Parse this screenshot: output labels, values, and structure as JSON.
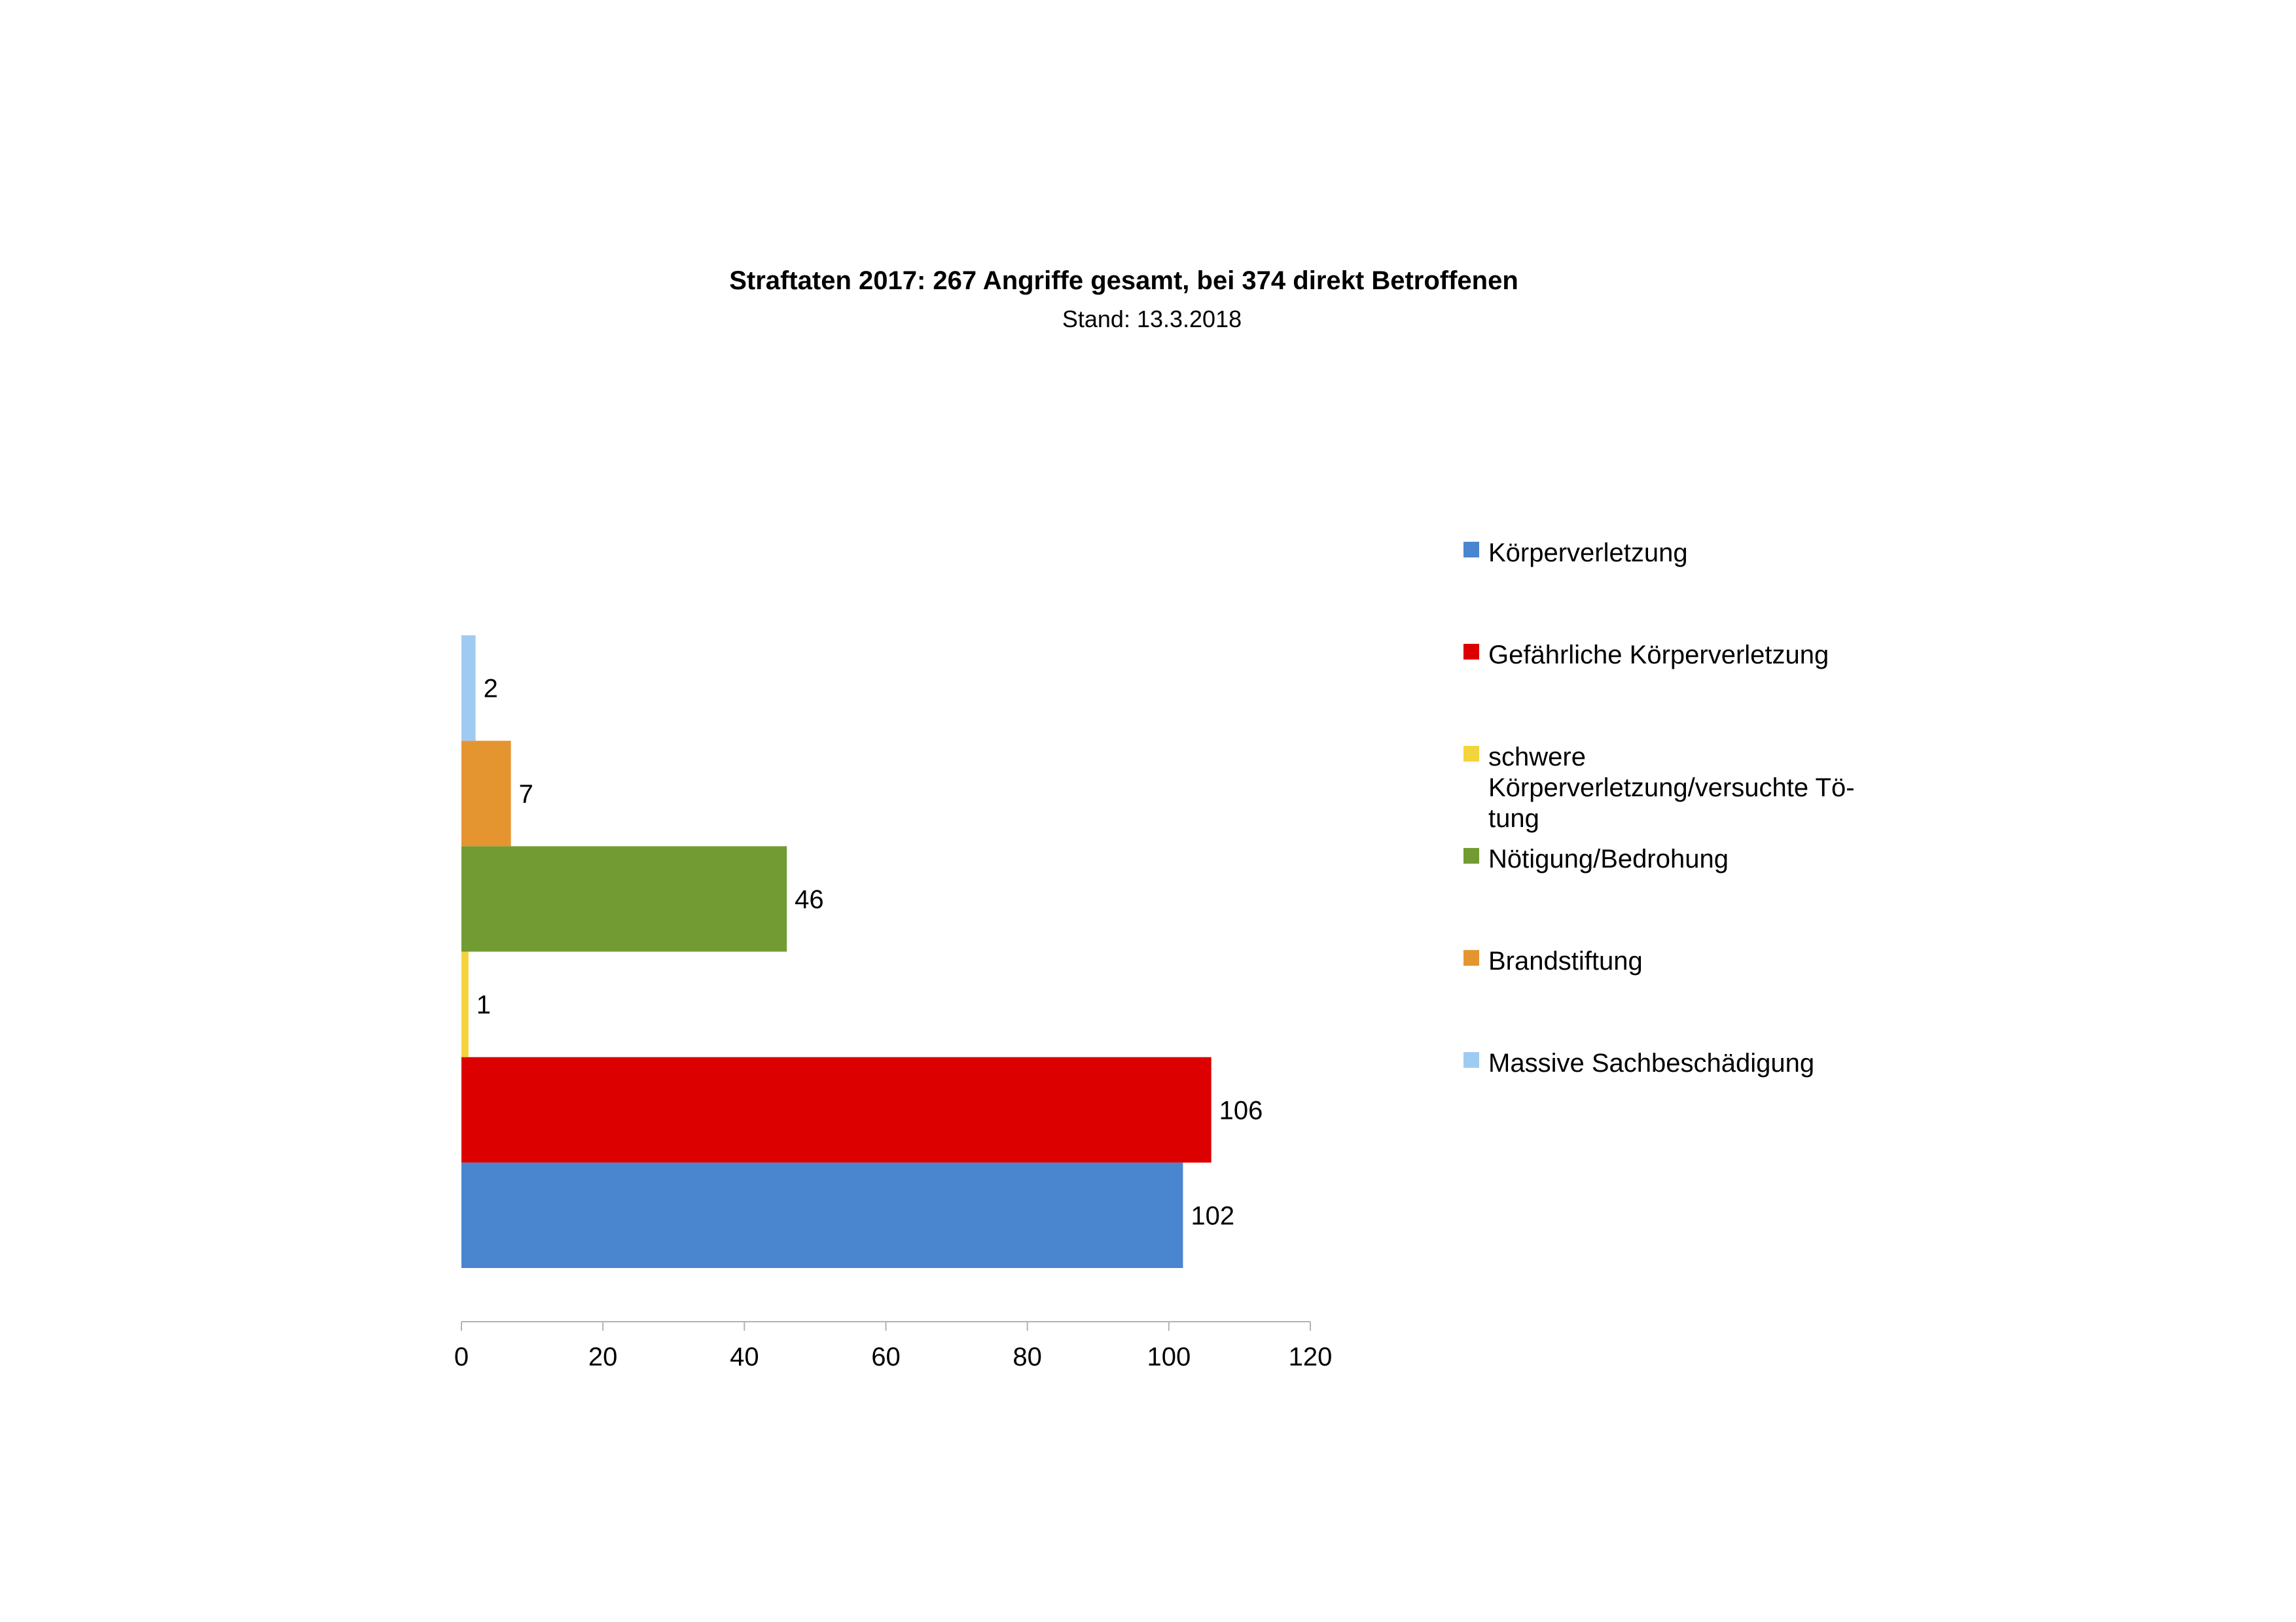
{
  "chart_data": {
    "type": "bar",
    "orientation": "horizontal",
    "title": "Straftaten 2017: 267 Angriffe gesamt, bei 374 direkt Betroffenen",
    "subtitle": "Stand: 13.3.2018",
    "xlabel": "",
    "ylabel": "",
    "xlim": [
      0,
      120
    ],
    "x_ticks": [
      "0",
      "20",
      "40",
      "60",
      "80",
      "100",
      "120"
    ],
    "grid": false,
    "legend_position": "right",
    "categories": [
      "Körperverletzung",
      "Gefährliche Körperverletzung",
      "schwere Körperverletzung/versuchte Tötung",
      "Nötigung/Bedrohung",
      "Brandstiftung",
      "Massive Sachbeschädigung"
    ],
    "values": [
      102,
      106,
      1,
      46,
      7,
      2
    ],
    "data_labels": [
      "102",
      "106",
      "1",
      "46",
      "7",
      "2"
    ],
    "colors": [
      "#4a86d0",
      "#dd0000",
      "#f5d33b",
      "#729c33",
      "#e59530",
      "#9fcbf3"
    ],
    "legend": [
      {
        "lines": [
          "Körperverletzung"
        ],
        "color": "#4a86d0"
      },
      {
        "lines": [
          "Gefährliche Körperverletzung"
        ],
        "color": "#dd0000"
      },
      {
        "lines": [
          "schwere",
          "Körperverletzung/versuchte Tö-",
          "tung"
        ],
        "color": "#f5d33b"
      },
      {
        "lines": [
          "Nötigung/Bedrohung"
        ],
        "color": "#729c33"
      },
      {
        "lines": [
          "Brandstiftung"
        ],
        "color": "#e59530"
      },
      {
        "lines": [
          "Massive Sachbeschädigung"
        ],
        "color": "#9fcbf3"
      }
    ]
  }
}
